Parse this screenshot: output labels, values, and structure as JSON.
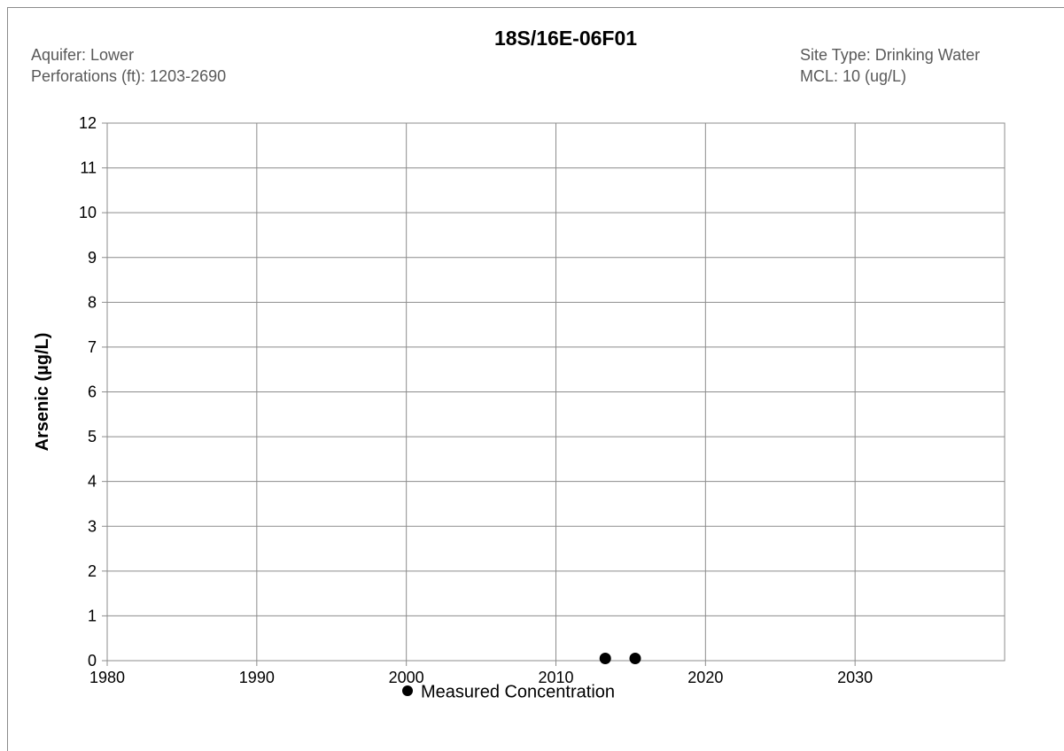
{
  "header": {
    "aquifer": "Aquifer: Lower",
    "perforations": "Perforations (ft): 1203-2690",
    "site_type": "Site Type: Drinking Water",
    "mcl": "MCL: 10 (ug/L)"
  },
  "chart_data": {
    "type": "scatter",
    "title": "18S/16E-06F01",
    "xlabel": "",
    "ylabel": "Arsenic (µg/L)",
    "xlim": [
      1980,
      2040
    ],
    "ylim": [
      0,
      12
    ],
    "x_ticks": [
      1980,
      1990,
      2000,
      2010,
      2020,
      2030
    ],
    "y_ticks": [
      0,
      1,
      2,
      3,
      4,
      5,
      6,
      7,
      8,
      9,
      10,
      11,
      12
    ],
    "grid": true,
    "legend_position": "bottom",
    "series": [
      {
        "name": "Measured Concentration",
        "color": "#000000",
        "marker": "circle",
        "points": [
          {
            "x": 2013.3,
            "y": 0.05
          },
          {
            "x": 2015.3,
            "y": 0.05
          }
        ]
      }
    ]
  }
}
